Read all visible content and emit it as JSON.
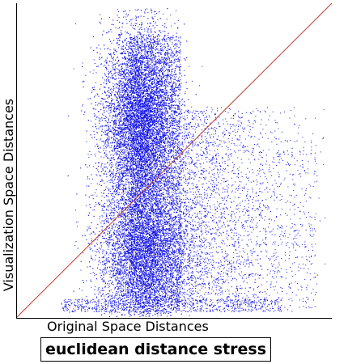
{
  "chart_data": {
    "type": "scatter",
    "title": "euclidean distance stress",
    "xlabel": "Original Space Distances",
    "ylabel": "Visualization Space Distances",
    "xlim": [
      0,
      1
    ],
    "ylim": [
      0,
      1
    ],
    "show_tick_labels": false,
    "grid": false,
    "reference_line": {
      "description": "identity line y = x",
      "points": [
        [
          0,
          0
        ],
        [
          1,
          1
        ]
      ],
      "color": "#c0392b"
    },
    "point_color": "#1010e6",
    "point_count_approx": 25000,
    "x": [
      0.3,
      0.32,
      0.34,
      0.36,
      0.38,
      0.4,
      0.42,
      0.44,
      0.46,
      0.48,
      0.5,
      0.52,
      0.55,
      0.58,
      0.62,
      0.66,
      0.7,
      0.75,
      0.8,
      0.85,
      0.9,
      0.95
    ],
    "y": [
      0.08,
      0.2,
      0.35,
      0.55,
      0.62,
      0.6,
      0.55,
      0.5,
      0.42,
      0.38,
      0.32,
      0.3,
      0.28,
      0.26,
      0.25,
      0.24,
      0.22,
      0.2,
      0.18,
      0.15,
      0.12,
      0.08
    ]
  }
}
